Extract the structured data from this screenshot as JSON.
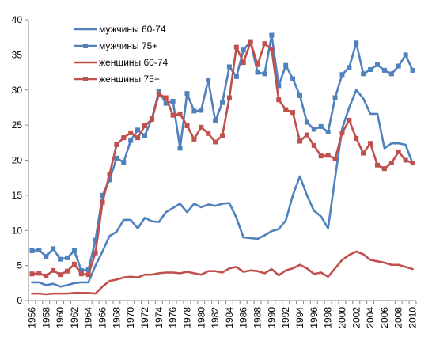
{
  "chart_data": {
    "type": "line",
    "title": "",
    "xlabel": "",
    "ylabel": "",
    "x": [
      1956,
      1957,
      1958,
      1959,
      1960,
      1961,
      1962,
      1963,
      1964,
      1965,
      1966,
      1967,
      1968,
      1969,
      1970,
      1971,
      1972,
      1973,
      1974,
      1975,
      1976,
      1977,
      1978,
      1979,
      1980,
      1981,
      1982,
      1983,
      1984,
      1985,
      1986,
      1987,
      1988,
      1989,
      1990,
      1991,
      1992,
      1993,
      1994,
      1995,
      1996,
      1997,
      1998,
      1999,
      2000,
      2001,
      2002,
      2003,
      2004,
      2005,
      2006,
      2007,
      2008,
      2009,
      2010
    ],
    "xticks": [
      "1956",
      "1958",
      "1960",
      "1962",
      "1964",
      "1966",
      "1968",
      "1970",
      "1972",
      "1974",
      "1976",
      "1978",
      "1980",
      "1982",
      "1984",
      "1986",
      "1988",
      "1990",
      "1992",
      "1994",
      "1996",
      "1998",
      "2000",
      "2002",
      "2004",
      "2006",
      "2008",
      "2010"
    ],
    "ylim": [
      0,
      40
    ],
    "yticks": [
      "0",
      "5",
      "10",
      "15",
      "20",
      "25",
      "30",
      "35",
      "40"
    ],
    "legend_position": "top-left",
    "grid": false,
    "series": [
      {
        "name": "мужчины 60-74",
        "color": "#4f81bd",
        "marker": "none",
        "values": [
          2.6,
          2.6,
          2.2,
          2.4,
          2.0,
          2.2,
          2.5,
          2.6,
          2.6,
          5.0,
          7.0,
          9.2,
          9.8,
          11.5,
          11.5,
          10.3,
          11.8,
          11.3,
          11.2,
          12.6,
          13.2,
          13.8,
          12.6,
          13.8,
          13.3,
          13.7,
          13.5,
          13.8,
          13.9,
          11.8,
          9.0,
          8.9,
          8.8,
          9.3,
          9.9,
          10.2,
          11.4,
          15.0,
          17.7,
          15.0,
          12.8,
          12.0,
          10.3,
          17.5,
          24.5,
          27.5,
          30.0,
          28.8,
          26.6,
          26.6,
          21.7,
          22.4,
          22.4,
          22.2,
          19.5
        ]
      },
      {
        "name": "мужчины 75+",
        "color": "#4f81bd",
        "marker": "square",
        "values": [
          7.1,
          7.2,
          6.3,
          7.4,
          5.9,
          6.1,
          7.1,
          4.3,
          4.4,
          8.6,
          15.0,
          17.2,
          20.3,
          19.7,
          22.8,
          24.3,
          23.5,
          25.9,
          29.8,
          28.1,
          28.4,
          21.7,
          29.5,
          27.0,
          27.1,
          31.4,
          25.6,
          28.2,
          33.3,
          31.9,
          35.7,
          36.9,
          32.5,
          32.3,
          37.8,
          30.6,
          33.5,
          31.6,
          29.2,
          25.4,
          24.4,
          24.8,
          24.0,
          28.9,
          32.2,
          33.2,
          36.7,
          32.3,
          32.9,
          33.6,
          32.8,
          32.3,
          33.4,
          35.0,
          32.8
        ]
      },
      {
        "name": "женщины 60-74",
        "color": "#c0504d",
        "marker": "none",
        "values": [
          1.0,
          1.0,
          0.9,
          1.0,
          1.0,
          1.0,
          1.1,
          1.1,
          1.1,
          1.0,
          2.0,
          2.8,
          3.0,
          3.3,
          3.4,
          3.3,
          3.7,
          3.7,
          3.9,
          4.0,
          4.0,
          3.9,
          4.1,
          3.9,
          3.7,
          4.2,
          4.2,
          4.0,
          4.6,
          4.8,
          4.1,
          4.3,
          4.2,
          3.9,
          4.5,
          3.6,
          4.3,
          4.6,
          5.1,
          4.6,
          3.8,
          4.0,
          3.4,
          4.6,
          5.8,
          6.5,
          7.0,
          6.6,
          5.8,
          5.6,
          5.4,
          5.1,
          5.1,
          4.8,
          4.5
        ]
      },
      {
        "name": "женщины 75+",
        "color": "#c0504d",
        "marker": "square",
        "values": [
          3.8,
          3.9,
          3.5,
          4.3,
          3.7,
          4.2,
          5.2,
          3.8,
          3.7,
          6.8,
          14.0,
          18.0,
          22.2,
          23.2,
          23.9,
          23.2,
          24.9,
          25.8,
          29.4,
          28.9,
          26.4,
          26.6,
          24.9,
          23.0,
          24.7,
          23.8,
          22.6,
          23.5,
          28.9,
          36.1,
          33.9,
          36.8,
          33.6,
          36.6,
          35.8,
          28.6,
          27.2,
          26.8,
          22.7,
          23.6,
          22.1,
          20.6,
          20.7,
          20.2,
          23.9,
          25.7,
          23.1,
          21.0,
          22.4,
          19.3,
          18.8,
          19.6,
          21.2,
          20.0,
          19.6
        ]
      }
    ]
  }
}
